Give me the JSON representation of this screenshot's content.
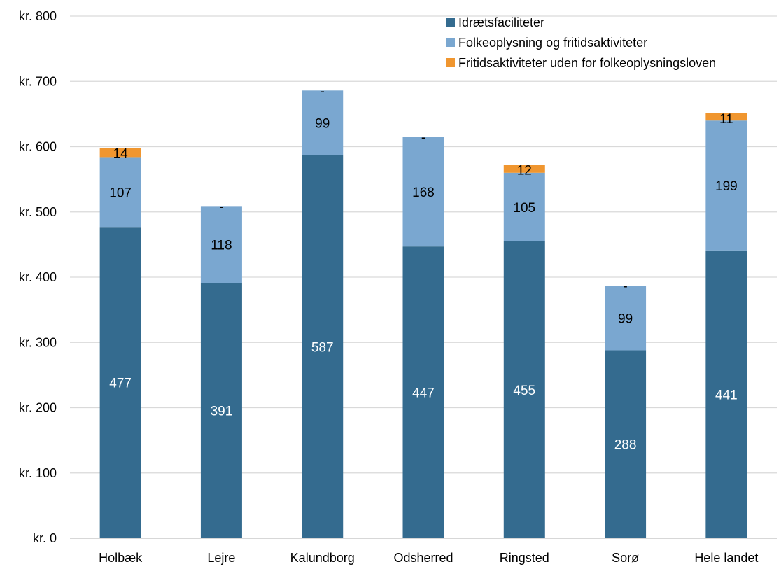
{
  "chart_data": {
    "type": "bar",
    "stacked": true,
    "categories": [
      "Holbæk",
      "Lejre",
      "Kalundborg",
      "Odsherred",
      "Ringsted",
      "Sorø",
      "Hele landet"
    ],
    "series": [
      {
        "name": "Idrætsfaciliteter",
        "color": "#346b8f",
        "label_color": "#ffffff",
        "values": [
          477,
          391,
          587,
          447,
          455,
          288,
          441
        ],
        "labels": [
          "477",
          "391",
          "587",
          "447",
          "455",
          "288",
          "441"
        ]
      },
      {
        "name": "Folkeoplysning og fritidsaktiviteter",
        "color": "#7aa7d0",
        "label_color": "#000000",
        "values": [
          107,
          118,
          99,
          168,
          105,
          99,
          199
        ],
        "labels": [
          "107",
          "118",
          "99",
          "168",
          "105",
          "99",
          "199"
        ]
      },
      {
        "name": "Fritidsaktiviteter uden for folkeoplysningsloven",
        "color": "#f0962f",
        "label_color": "#000000",
        "values": [
          14,
          0,
          0,
          0,
          12,
          0,
          11
        ],
        "labels": [
          "14",
          "-",
          "-",
          "-",
          "12",
          "-",
          "11"
        ]
      }
    ],
    "y_ticks": [
      "kr. 0",
      "kr. 100",
      "kr. 200",
      "kr. 300",
      "kr. 400",
      "kr. 500",
      "kr. 600",
      "kr. 700",
      "kr. 800"
    ],
    "ylim": [
      0,
      800
    ],
    "y_step": 100,
    "grid": true,
    "legend_position": "top-right",
    "title": "",
    "xlabel": "",
    "ylabel": ""
  }
}
